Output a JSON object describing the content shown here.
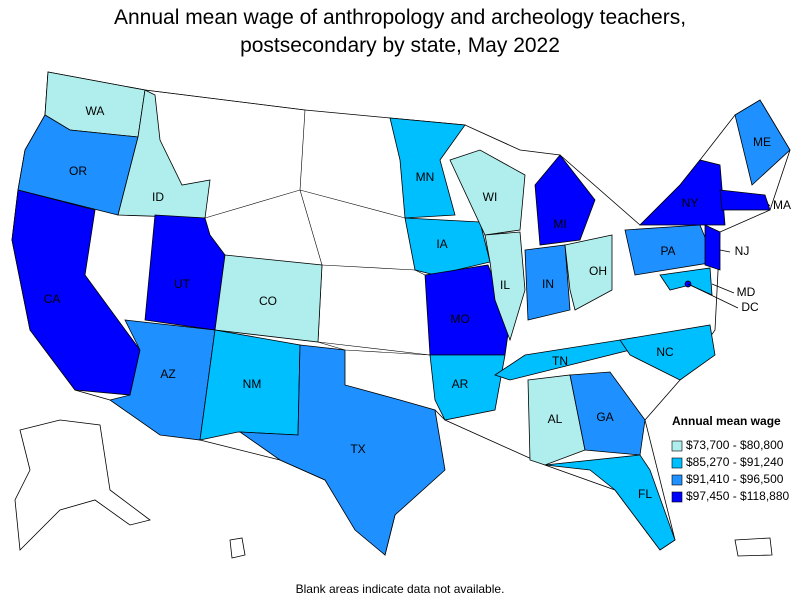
{
  "title": "Annual mean wage of anthropology and archeology teachers, postsecondary by state, May 2022",
  "states": [
    {
      "label": "WA",
      "color": "#b0eeee"
    },
    {
      "label": "OR",
      "color": "#1e90ff"
    },
    {
      "label": "CA",
      "color": "#0000ff"
    },
    {
      "label": "ID",
      "color": "#b0eeee"
    },
    {
      "label": "UT",
      "color": "#0000ff"
    },
    {
      "label": "AZ",
      "color": "#1e90ff"
    },
    {
      "label": "CO",
      "color": "#b0eeee"
    },
    {
      "label": "NM",
      "color": "#00bfff"
    },
    {
      "label": "TX",
      "color": "#1e90ff"
    },
    {
      "label": "MN",
      "color": "#00bfff"
    },
    {
      "label": "IA",
      "color": "#00bfff"
    },
    {
      "label": "MO",
      "color": "#0000ff"
    },
    {
      "label": "AR",
      "color": "#00bfff"
    },
    {
      "label": "WI",
      "color": "#b0eeee"
    },
    {
      "label": "IL",
      "color": "#b0eeee"
    },
    {
      "label": "MI",
      "color": "#0000ff"
    },
    {
      "label": "IN",
      "color": "#1e90ff"
    },
    {
      "label": "OH",
      "color": "#b0eeee"
    },
    {
      "label": "TN",
      "color": "#00bfff"
    },
    {
      "label": "AL",
      "color": "#b0eeee"
    },
    {
      "label": "GA",
      "color": "#1e90ff"
    },
    {
      "label": "FL",
      "color": "#00bfff"
    },
    {
      "label": "NC",
      "color": "#00bfff"
    },
    {
      "label": "PA",
      "color": "#1e90ff"
    },
    {
      "label": "NY",
      "color": "#0000ff"
    },
    {
      "label": "NJ",
      "color": "#0000ff"
    },
    {
      "label": "MA",
      "color": "#0000ff"
    },
    {
      "label": "ME",
      "color": "#1e90ff"
    },
    {
      "label": "MD",
      "color": "#00bfff"
    },
    {
      "label": "DC",
      "color": "#0000ff"
    }
  ],
  "legend": {
    "title": "Annual mean wage",
    "items": [
      {
        "label": "$73,700 - $80,800",
        "color": "#b0eeee"
      },
      {
        "label": "$85,270 - $91,240",
        "color": "#00bfff"
      },
      {
        "label": "$91,410 - $96,500",
        "color": "#1e90ff"
      },
      {
        "label": "$97,450 - $118,880",
        "color": "#0000ff"
      }
    ]
  },
  "note": "Blank areas indicate data not available."
}
